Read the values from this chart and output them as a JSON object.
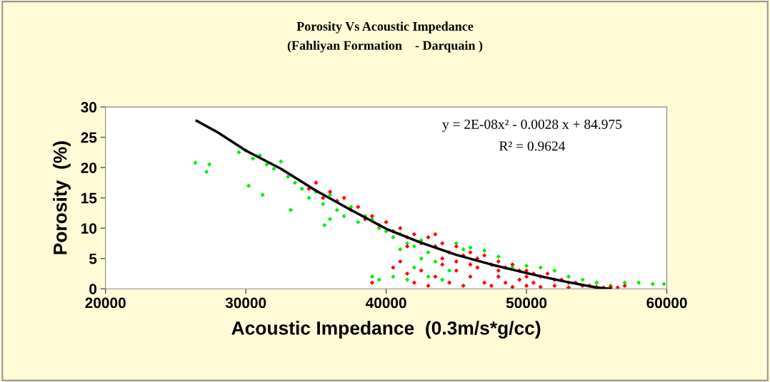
{
  "chart_data": {
    "type": "scatter",
    "title": "Porosity Vs Acoustic Impedance",
    "subtitle": "(Fahliyan Formation    - Darquain )",
    "xlabel": "Acoustic Impedance  (0.3m/s*g/cc)",
    "ylabel": "Porosity  (%)",
    "xlim": [
      20000,
      60000
    ],
    "xticks": [
      20000,
      30000,
      40000,
      50000,
      60000
    ],
    "ylim": [
      0,
      30
    ],
    "yticks": [
      0,
      5,
      10,
      15,
      20,
      25,
      30
    ],
    "grid": false,
    "legend": false,
    "marker": "diamond",
    "annotations": [
      "y = 2E-08x² - 0.0028 x + 84.975",
      "R² = 0.9624"
    ],
    "series": [
      {
        "color": "#00ee00",
        "x": [
          26400,
          27400,
          27200,
          29500,
          30000,
          30500,
          31000,
          31500,
          32000,
          32500,
          30200,
          31200,
          33000,
          33500,
          34000,
          34500,
          35000,
          35500,
          36000,
          36500,
          37000,
          37500,
          38000,
          33200,
          36000,
          35600,
          38500,
          39000,
          39500,
          40000,
          40500,
          41000,
          41500,
          42000,
          42500,
          39000,
          39500,
          40500,
          41500,
          42000,
          43000,
          43500,
          44000,
          44500,
          45000,
          45500,
          46000,
          47000,
          48000,
          49000,
          50000,
          51000,
          52000,
          53000,
          54000,
          55000,
          56000,
          57000,
          58000,
          59000,
          59800,
          41000,
          42500,
          43000
        ],
        "values": [
          20.8,
          20.5,
          19.3,
          22.5,
          22.8,
          21.5,
          22.0,
          20.5,
          19.8,
          21.0,
          17.0,
          15.5,
          18.5,
          17.5,
          16.5,
          15.0,
          16.0,
          14.0,
          15.5,
          13.0,
          12.0,
          13.5,
          11.0,
          13.0,
          11.5,
          10.5,
          12.0,
          11.5,
          10.0,
          9.5,
          8.5,
          9.0,
          7.5,
          7.0,
          8.0,
          2.0,
          1.5,
          2.0,
          1.5,
          3.5,
          2.0,
          4.5,
          1.5,
          3.0,
          7.5,
          6.5,
          6.8,
          6.3,
          5.3,
          3.5,
          3.8,
          3.5,
          3.0,
          2.0,
          1.5,
          1.0,
          0.5,
          1.0,
          1.0,
          0.8,
          0.8,
          6.5,
          5.0,
          6.0
        ]
      },
      {
        "color": "#ff0000",
        "x": [
          34500,
          35000,
          35500,
          36000,
          36500,
          37000,
          37500,
          38000,
          38500,
          39000,
          39500,
          40000,
          40500,
          41000,
          41500,
          42000,
          42500,
          43000,
          43500,
          44000,
          44500,
          45000,
          45500,
          46000,
          46500,
          47000,
          47500,
          48000,
          48500,
          49000,
          49500,
          50000,
          50500,
          51000,
          51500,
          52000,
          52500,
          53000,
          53500,
          54000,
          54500,
          55000,
          55500,
          56000,
          56500,
          57000,
          40500,
          41000,
          41500,
          42000,
          42500,
          43000,
          43500,
          44000,
          44500,
          45000,
          45500,
          46000,
          46500,
          47000,
          47500,
          48000,
          48500,
          49000,
          49500,
          50000,
          50500,
          51000,
          52000,
          53000,
          44000,
          46000,
          48000,
          50000,
          41500,
          39000,
          43500,
          45000
        ],
        "values": [
          16.5,
          17.5,
          15.0,
          16.0,
          14.5,
          15.0,
          13.0,
          13.5,
          11.5,
          12.0,
          10.5,
          11.0,
          9.5,
          10.0,
          8.5,
          9.0,
          7.5,
          8.5,
          7.0,
          7.5,
          6.0,
          7.0,
          5.5,
          6.0,
          5.0,
          5.5,
          4.0,
          4.5,
          3.5,
          4.0,
          3.0,
          3.0,
          2.5,
          2.0,
          2.5,
          1.5,
          1.5,
          1.0,
          1.0,
          0.5,
          0.5,
          0.3,
          0.2,
          0.3,
          0.2,
          0.5,
          3.5,
          4.5,
          2.5,
          1.0,
          3.0,
          0.5,
          2.0,
          4.0,
          1.0,
          3.0,
          0.5,
          2.0,
          3.5,
          1.0,
          0.5,
          2.0,
          1.0,
          0.3,
          1.5,
          0.5,
          1.0,
          0.3,
          0.5,
          0.2,
          5.0,
          4.0,
          3.0,
          2.0,
          7.0,
          1.0,
          9.0,
          4.5
        ]
      },
      {
        "type": "line",
        "color": "#000000",
        "marker": "none",
        "x": [
          26500,
          28000,
          30000,
          32500,
          35000,
          37500,
          40000,
          42500,
          45000,
          47500,
          50000,
          52500,
          55000,
          56000
        ],
        "values": [
          27.7,
          25.8,
          22.8,
          19.8,
          16.2,
          13.0,
          9.9,
          7.6,
          5.6,
          4.0,
          2.6,
          1.3,
          0.2,
          0.0
        ]
      }
    ]
  }
}
